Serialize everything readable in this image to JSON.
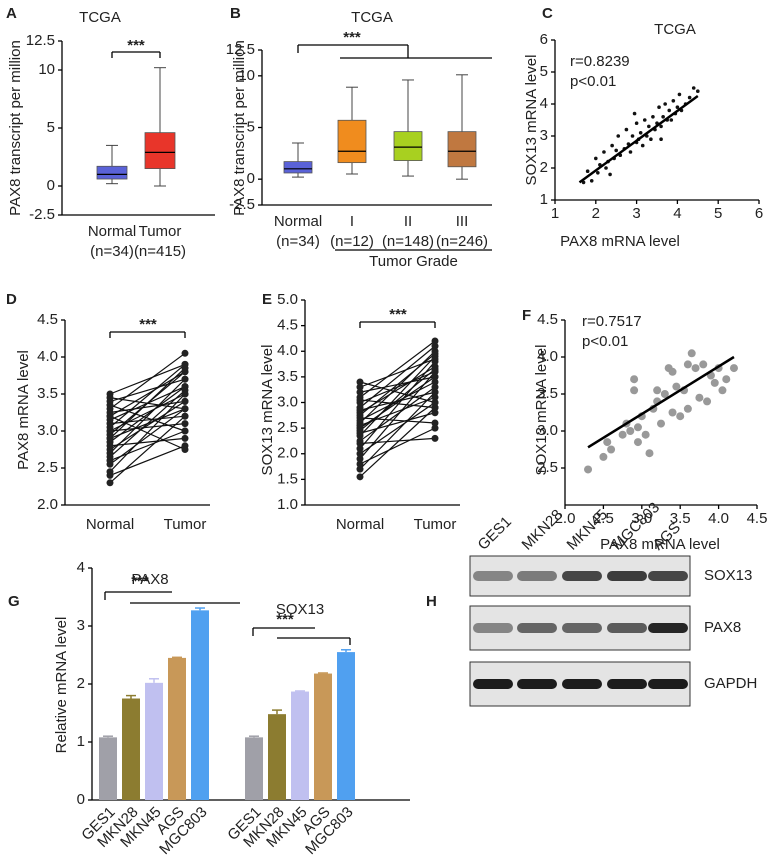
{
  "chart_data": [
    {
      "panel": "A",
      "type": "box",
      "title": "TCGA",
      "ylabel": "PAX8 transcript per million",
      "categories": [
        "Normal",
        "Tumor"
      ],
      "category_notes": [
        "(n=34)",
        "(n=415)"
      ],
      "boxes": [
        {
          "color": "#5a62d8",
          "min": 0.2,
          "q1": 0.6,
          "median": 1.0,
          "q3": 1.7,
          "max": 3.5
        },
        {
          "color": "#e8352a",
          "min": 0,
          "q1": 1.5,
          "median": 2.9,
          "q3": 4.6,
          "max": 10.2
        }
      ],
      "ylim": [
        -2.5,
        12.5
      ],
      "yticks": [
        -2.5,
        0,
        5,
        10,
        12.5
      ],
      "annotation": "***"
    },
    {
      "panel": "B",
      "type": "box",
      "title": "TCGA",
      "ylabel": "PAX8 transcript per million",
      "categories": [
        "Normal",
        "I",
        "II",
        "III"
      ],
      "category_notes": [
        "(n=34)",
        "(n=12)",
        "(n=148)",
        "(n=246)"
      ],
      "group_label": "Tumor Grade",
      "boxes": [
        {
          "color": "#5a62d8",
          "min": 0.2,
          "q1": 0.6,
          "median": 1.0,
          "q3": 1.7,
          "max": 3.5
        },
        {
          "color": "#f08c1e",
          "min": 0.5,
          "q1": 1.6,
          "median": 2.7,
          "q3": 5.7,
          "max": 8.9
        },
        {
          "color": "#a8d020",
          "min": 0.3,
          "q1": 1.8,
          "median": 3.1,
          "q3": 4.6,
          "max": 9.6
        },
        {
          "color": "#c07840",
          "min": 0,
          "q1": 1.2,
          "median": 2.7,
          "q3": 4.6,
          "max": 10.1
        }
      ],
      "ylim": [
        -2.5,
        12.5
      ],
      "yticks": [
        -2.5,
        0,
        5,
        10,
        12.5
      ],
      "annotation": "***"
    },
    {
      "panel": "C",
      "type": "scatter",
      "title": "TCGA",
      "xlabel": "PAX8 mRNA  level",
      "ylabel": "SOX13 mRNA  level",
      "stats": [
        "r=0.8239",
        "p<0.01"
      ],
      "color": "#111111",
      "point_size": 1.8,
      "x": [
        1.7,
        1.8,
        1.9,
        2.0,
        2.05,
        2.1,
        2.2,
        2.25,
        2.3,
        2.4,
        2.45,
        2.5,
        2.55,
        2.6,
        2.7,
        2.75,
        2.8,
        2.85,
        2.9,
        3.0,
        3.0,
        3.05,
        3.1,
        3.15,
        3.2,
        3.25,
        3.3,
        3.35,
        3.4,
        3.45,
        3.5,
        3.55,
        3.6,
        3.65,
        3.7,
        3.75,
        3.8,
        3.85,
        3.9,
        3.95,
        4.0,
        4.05,
        4.1,
        4.2,
        4.3,
        4.4,
        4.5,
        2.35,
        2.95,
        3.6
      ],
      "y": [
        1.55,
        1.9,
        1.6,
        2.3,
        1.85,
        2.1,
        2.5,
        2.0,
        2.2,
        2.7,
        2.3,
        2.55,
        3.0,
        2.4,
        2.6,
        3.2,
        2.75,
        2.5,
        3.0,
        2.8,
        3.4,
        2.9,
        3.1,
        2.7,
        3.5,
        3.0,
        3.3,
        2.9,
        3.6,
        3.2,
        3.4,
        3.9,
        3.3,
        3.6,
        4.0,
        3.5,
        3.8,
        3.5,
        4.1,
        3.7,
        3.9,
        4.3,
        3.8,
        4.0,
        4.2,
        4.5,
        4.4,
        1.8,
        3.7,
        2.9
      ],
      "fit": {
        "x": [
          1.6,
          4.5
        ],
        "y": [
          1.55,
          4.25
        ]
      },
      "xlim": [
        1,
        6
      ],
      "xticks": [
        1,
        2,
        3,
        4,
        5,
        6
      ],
      "ylim": [
        1,
        6
      ],
      "yticks": [
        1,
        2,
        3,
        4,
        5,
        6
      ]
    },
    {
      "panel": "D",
      "type": "paired",
      "ylabel": "PAX8 mRNA  level",
      "categories": [
        "Normal",
        "Tumor"
      ],
      "pairs": [
        [
          2.3,
          3.2
        ],
        [
          2.4,
          2.8
        ],
        [
          2.45,
          3.5
        ],
        [
          2.55,
          3.3
        ],
        [
          2.6,
          3.0
        ],
        [
          2.7,
          3.7
        ],
        [
          2.75,
          3.4
        ],
        [
          2.8,
          2.9
        ],
        [
          2.85,
          3.6
        ],
        [
          2.9,
          3.3
        ],
        [
          2.95,
          3.8
        ],
        [
          3.0,
          3.1
        ],
        [
          3.0,
          3.5
        ],
        [
          3.05,
          3.9
        ],
        [
          3.1,
          3.2
        ],
        [
          3.15,
          3.6
        ],
        [
          3.2,
          2.75
        ],
        [
          3.2,
          3.8
        ],
        [
          3.25,
          3.4
        ],
        [
          3.3,
          4.05
        ],
        [
          3.35,
          3.0
        ],
        [
          3.4,
          3.7
        ],
        [
          3.45,
          3.3
        ],
        [
          3.5,
          3.9
        ],
        [
          2.65,
          3.55
        ],
        [
          2.9,
          3.85
        ]
      ],
      "ylim": [
        2.0,
        4.5
      ],
      "yticks": [
        {
          "value": 2,
          "label": "2.0"
        },
        {
          "value": 2.5,
          "label": "2.5"
        },
        {
          "value": 3,
          "label": "3.0"
        },
        {
          "value": 3.5,
          "label": "3.5"
        },
        {
          "value": 4,
          "label": "4.0"
        },
        {
          "value": 4.5,
          "label": "4.5"
        }
      ],
      "annotation": "***"
    },
    {
      "panel": "E",
      "type": "paired",
      "ylabel": "SOX13 mRNA  level",
      "categories": [
        "Normal",
        "Tumor"
      ],
      "pairs": [
        [
          1.55,
          2.9
        ],
        [
          1.7,
          3.2
        ],
        [
          1.8,
          2.5
        ],
        [
          1.9,
          3.6
        ],
        [
          2.0,
          3.0
        ],
        [
          2.1,
          3.8
        ],
        [
          2.2,
          2.3
        ],
        [
          2.25,
          3.3
        ],
        [
          2.35,
          3.9
        ],
        [
          2.4,
          2.8
        ],
        [
          2.5,
          3.5
        ],
        [
          2.55,
          3.1
        ],
        [
          2.6,
          4.0
        ],
        [
          2.65,
          3.4
        ],
        [
          2.7,
          2.6
        ],
        [
          2.8,
          3.7
        ],
        [
          2.85,
          3.2
        ],
        [
          2.9,
          4.1
        ],
        [
          3.0,
          3.6
        ],
        [
          3.05,
          2.9
        ],
        [
          3.1,
          4.2
        ],
        [
          3.2,
          3.5
        ],
        [
          3.3,
          3.85
        ],
        [
          3.4,
          3.0
        ],
        [
          2.45,
          3.65
        ],
        [
          2.75,
          3.95
        ]
      ],
      "ylim": [
        1.0,
        5.0
      ],
      "yticks": [
        {
          "value": 1,
          "label": "1.0"
        },
        {
          "value": 1.5,
          "label": "1.5"
        },
        {
          "value": 2,
          "label": "2.0"
        },
        {
          "value": 2.5,
          "label": "2.5"
        },
        {
          "value": 3,
          "label": "3.0"
        },
        {
          "value": 3.5,
          "label": "3.5"
        },
        {
          "value": 4,
          "label": "4.0"
        },
        {
          "value": 4.5,
          "label": "4.5"
        },
        {
          "value": 5,
          "label": "5.0"
        }
      ],
      "annotation": "***"
    },
    {
      "panel": "F",
      "type": "scatter",
      "xlabel": "PAX8 mRNA level",
      "ylabel": "SOX13 mRNA level",
      "stats": [
        "r=0.7517",
        "p<0.01"
      ],
      "color": "#999999",
      "point_size": 4,
      "x": [
        2.3,
        2.5,
        2.55,
        2.6,
        2.75,
        2.8,
        2.85,
        2.9,
        2.9,
        2.95,
        3.0,
        3.05,
        3.1,
        3.15,
        3.2,
        3.25,
        3.3,
        3.35,
        3.4,
        3.4,
        3.45,
        3.5,
        3.55,
        3.6,
        3.65,
        3.7,
        3.75,
        3.8,
        3.85,
        3.9,
        3.95,
        4.0,
        4.05,
        4.1,
        4.2,
        3.2,
        2.95,
        3.6
      ],
      "y": [
        2.48,
        2.65,
        2.85,
        2.75,
        2.95,
        3.1,
        3.0,
        3.7,
        3.55,
        2.85,
        3.2,
        2.95,
        2.7,
        3.3,
        3.4,
        3.1,
        3.5,
        3.85,
        3.8,
        3.25,
        3.6,
        3.2,
        3.55,
        3.9,
        4.05,
        3.85,
        3.45,
        3.9,
        3.4,
        3.75,
        3.65,
        3.85,
        3.55,
        3.7,
        3.85,
        3.55,
        3.05,
        3.3
      ],
      "fit": {
        "x": [
          2.3,
          4.2
        ],
        "y": [
          2.78,
          4.0
        ]
      },
      "xlim": [
        2.0,
        4.5
      ],
      "xticks": [
        {
          "value": 2,
          "label": "2.0"
        },
        {
          "value": 2.5,
          "label": "2.5"
        },
        {
          "value": 3,
          "label": "3.0"
        },
        {
          "value": 3.5,
          "label": "3.5"
        },
        {
          "value": 4,
          "label": "4.0"
        },
        {
          "value": 4.5,
          "label": "4.5"
        }
      ],
      "ylim": [
        2.0,
        4.5
      ],
      "yticks": [
        {
          "value": 2.5,
          "label": "2.5"
        },
        {
          "value": 3,
          "label": "3.0"
        },
        {
          "value": 3.5,
          "label": "3.5"
        },
        {
          "value": 4,
          "label": "4.0"
        },
        {
          "value": 4.5,
          "label": "4.5"
        }
      ]
    },
    {
      "panel": "G",
      "type": "bar",
      "ylabel": "Relative mRNA  level",
      "categories": [
        "GES1",
        "MKN28",
        "MKN45",
        "AGS",
        "MGC803"
      ],
      "colors": [
        "#a0a0a8",
        "#8c7c30",
        "#c0c0f0",
        "#c89858",
        "#50a0f0"
      ],
      "groups": [
        {
          "name": "PAX8",
          "values": [
            1.08,
            1.75,
            2.02,
            2.45,
            3.27
          ],
          "errors": [
            0.02,
            0.05,
            0.07,
            0.01,
            0.04
          ],
          "annotation": "***"
        },
        {
          "name": "SOX13",
          "values": [
            1.08,
            1.48,
            1.87,
            2.18,
            2.55
          ],
          "errors": [
            0.02,
            0.07,
            0.01,
            0.01,
            0.04
          ],
          "annotation": "***"
        }
      ],
      "ylim": [
        0,
        4
      ],
      "yticks": [
        0,
        1,
        2,
        3,
        4
      ]
    },
    {
      "panel": "H",
      "type": "blot",
      "lanes": [
        "GES1",
        "MKN28",
        "MKN45",
        "MGC803",
        "AGS"
      ],
      "bands": [
        "SOX13",
        "PAX8",
        "GAPDH"
      ]
    }
  ]
}
